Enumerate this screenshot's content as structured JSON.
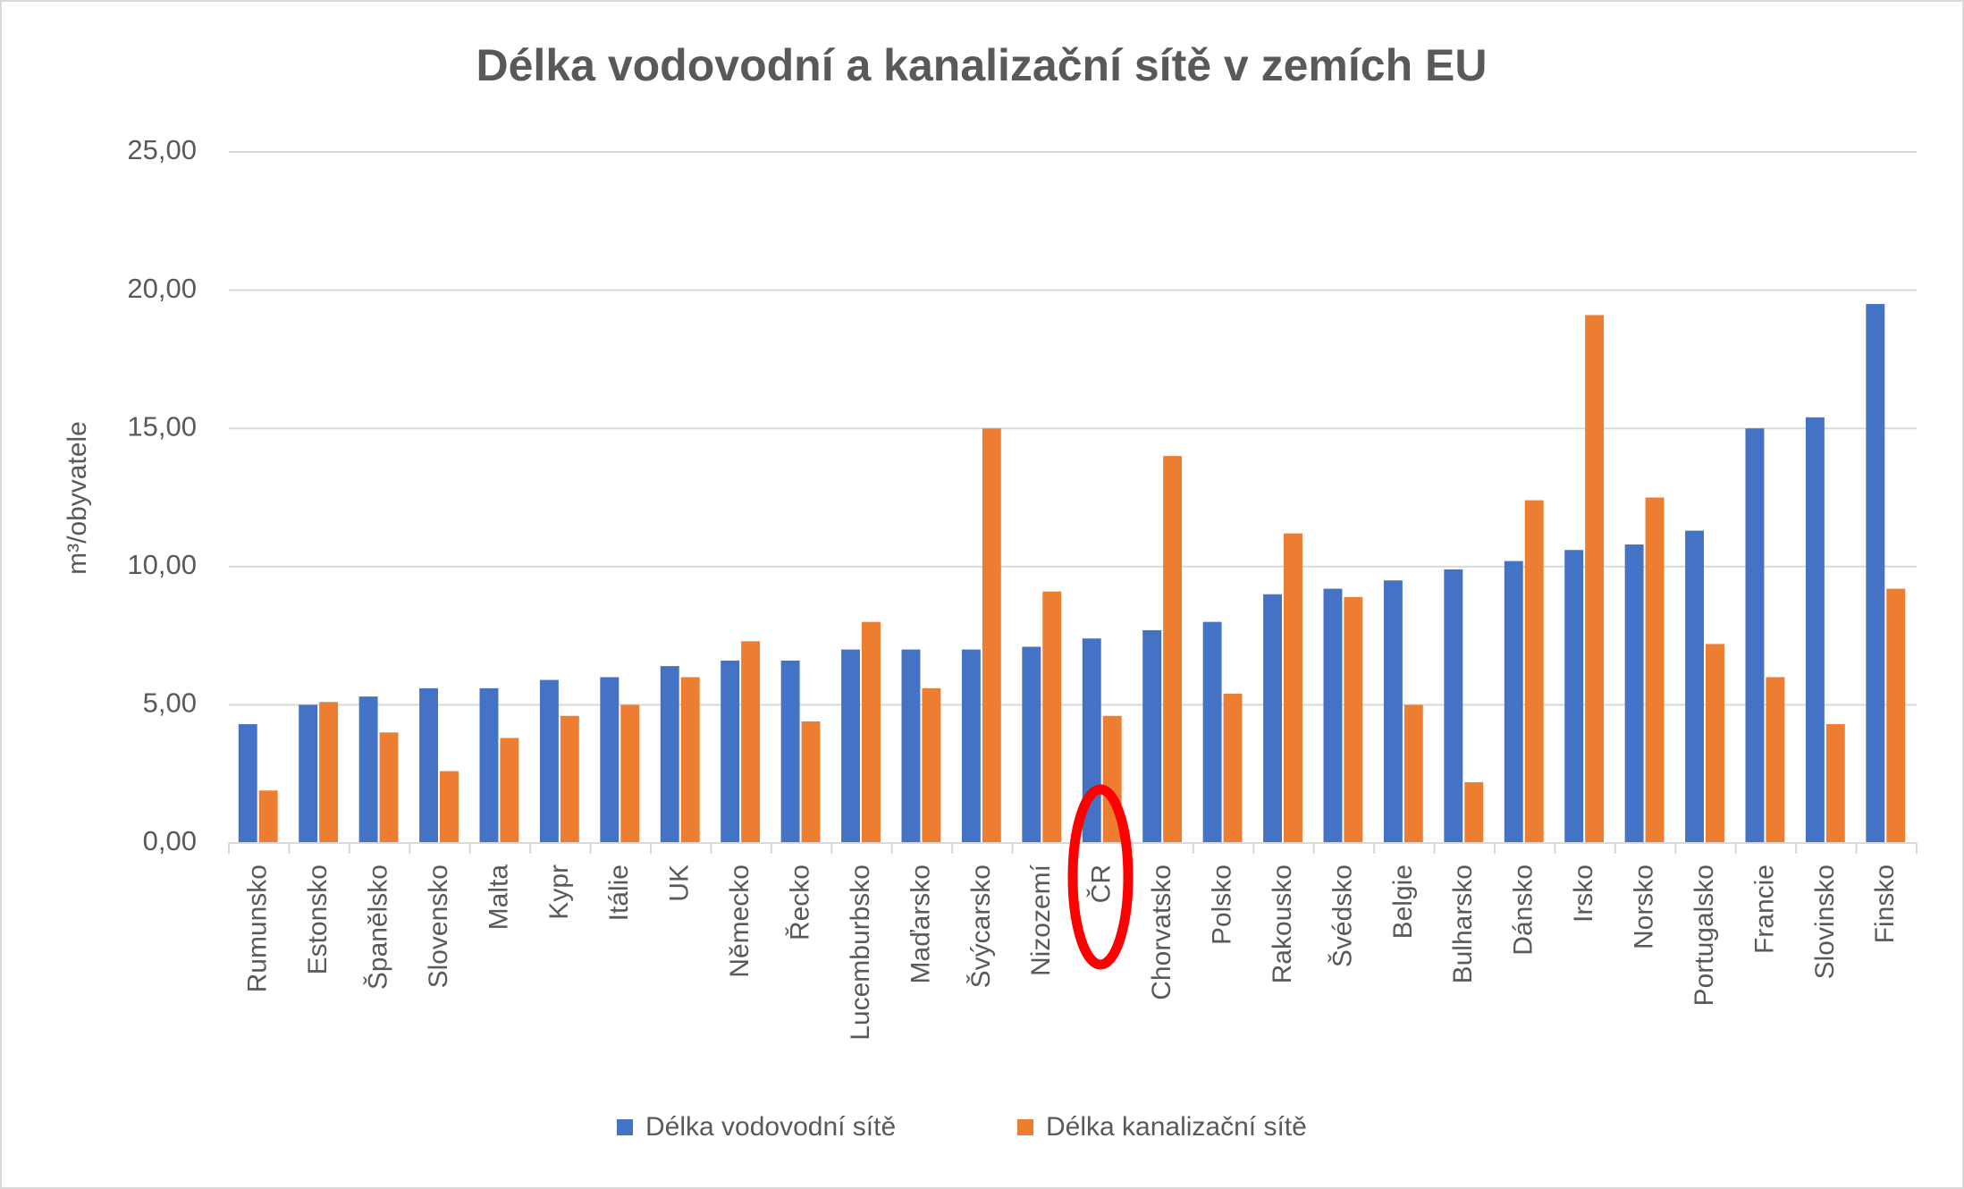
{
  "chart_data": {
    "type": "bar",
    "title": "Délka vodovodní a kanalizační sítě v zemích EU",
    "y_label": "m³/obyvatele",
    "categories": [
      "Rumunsko",
      "Estonsko",
      "Španělsko",
      "Slovensko",
      "Malta",
      "Kypr",
      "Itálie",
      "UK",
      "Německo",
      "Řecko",
      "Lucemburbsko",
      "Maďarsko",
      "Švýcarsko",
      "Nizozemí",
      "ČR",
      "Chorvatsko",
      "Polsko",
      "Rakousko",
      "Švédsko",
      "Belgie",
      "Bulharsko",
      "Dánsko",
      "Irsko",
      "Norsko",
      "Portugalsko",
      "Francie",
      "Slovinsko",
      "Finsko"
    ],
    "series": [
      {
        "name": "Délka vodovodní sítě",
        "color": "#4472c4",
        "values": [
          4.3,
          5.0,
          5.3,
          5.6,
          5.6,
          5.9,
          6.0,
          6.4,
          6.6,
          6.6,
          7.0,
          7.0,
          7.0,
          7.1,
          7.4,
          7.7,
          8.0,
          9.0,
          9.2,
          9.5,
          9.9,
          10.2,
          10.6,
          10.8,
          11.3,
          15.0,
          15.4,
          19.5
        ]
      },
      {
        "name": "Délka kanalizační sítě",
        "color": "#ed7d31",
        "values": [
          1.9,
          5.1,
          4.0,
          2.6,
          3.8,
          4.6,
          5.0,
          6.0,
          7.3,
          4.4,
          8.0,
          5.6,
          15.0,
          9.1,
          4.6,
          14.0,
          5.4,
          11.2,
          8.9,
          5.0,
          2.2,
          12.4,
          19.1,
          12.5,
          7.2,
          6.0,
          4.3,
          9.2
        ]
      }
    ],
    "ylim": [
      0,
      25
    ],
    "yticks": [
      {
        "value": 0,
        "label": "0,00"
      },
      {
        "value": 5,
        "label": "5,00"
      },
      {
        "value": 10,
        "label": "10,00"
      },
      {
        "value": 15,
        "label": "15,00"
      },
      {
        "value": 20,
        "label": "20,00"
      },
      {
        "value": 25,
        "label": "25,00"
      }
    ],
    "grid": true,
    "legend": "bottom"
  }
}
